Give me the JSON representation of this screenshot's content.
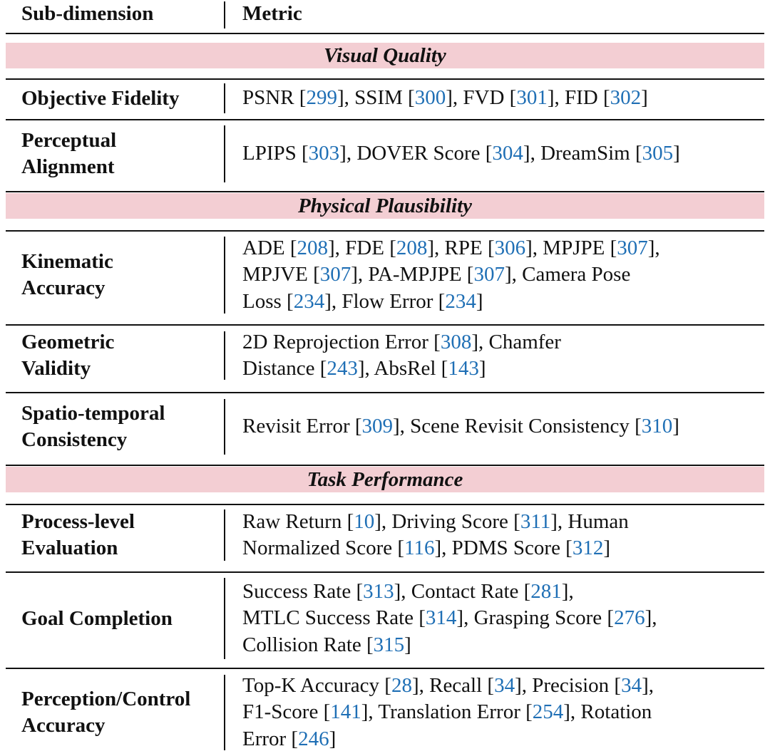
{
  "header": {
    "col1": "Sub-dimension",
    "col2": "Metric"
  },
  "sections": [
    {
      "title": "Visual Quality",
      "rows": [
        {
          "sub": [
            "Objective Fidelity"
          ],
          "lines": [
            [
              [
                "PSNR [",
                ""
              ],
              [
                "299",
                "r"
              ],
              [
                "], SSIM [",
                ""
              ],
              [
                "300",
                "r"
              ],
              [
                "], FVD [",
                ""
              ],
              [
                "301",
                "r"
              ],
              [
                "], FID [",
                ""
              ],
              [
                "302",
                "r"
              ],
              [
                "]",
                ""
              ]
            ]
          ]
        },
        {
          "sub": [
            "Perceptual",
            "Alignment"
          ],
          "lines": [
            [
              [
                "LPIPS [",
                ""
              ],
              [
                "303",
                "r"
              ],
              [
                "], DOVER Score [",
                ""
              ],
              [
                "304",
                "r"
              ],
              [
                "], DreamSim [",
                ""
              ],
              [
                "305",
                "r"
              ],
              [
                "]",
                ""
              ]
            ]
          ]
        }
      ]
    },
    {
      "title": "Physical Plausibility",
      "rows": [
        {
          "sub": [
            "Kinematic",
            "Accuracy"
          ],
          "lines": [
            [
              [
                "ADE [",
                ""
              ],
              [
                "208",
                "r"
              ],
              [
                "], FDE [",
                ""
              ],
              [
                "208",
                "r"
              ],
              [
                "], RPE [",
                ""
              ],
              [
                "306",
                "r"
              ],
              [
                "], MPJPE [",
                ""
              ],
              [
                "307",
                "r"
              ],
              [
                "],",
                ""
              ]
            ],
            [
              [
                "MPJVE [",
                ""
              ],
              [
                "307",
                "r"
              ],
              [
                "], PA-MPJPE [",
                ""
              ],
              [
                "307",
                "r"
              ],
              [
                "], Camera Pose",
                ""
              ]
            ],
            [
              [
                "Loss [",
                ""
              ],
              [
                "234",
                "r"
              ],
              [
                "], Flow Error [",
                ""
              ],
              [
                "234",
                "r"
              ],
              [
                "]",
                ""
              ]
            ]
          ]
        },
        {
          "sub": [
            "Geometric",
            "Validity"
          ],
          "lines": [
            [
              [
                "2D Reprojection Error [",
                ""
              ],
              [
                "308",
                "r"
              ],
              [
                "], Chamfer",
                ""
              ]
            ],
            [
              [
                "Distance [",
                ""
              ],
              [
                "243",
                "r"
              ],
              [
                "], AbsRel [",
                ""
              ],
              [
                "143",
                "r"
              ],
              [
                "]",
                ""
              ]
            ]
          ]
        },
        {
          "sub": [
            "Spatio-temporal",
            "Consistency"
          ],
          "lines": [
            [
              [
                "Revisit Error [",
                ""
              ],
              [
                "309",
                "r"
              ],
              [
                "], Scene Revisit Consistency [",
                ""
              ],
              [
                "310",
                "r"
              ],
              [
                "]",
                ""
              ]
            ]
          ]
        }
      ]
    },
    {
      "title": "Task Performance",
      "rows": [
        {
          "sub": [
            "Process-level",
            "Evaluation"
          ],
          "lines": [
            [
              [
                "Raw Return [",
                ""
              ],
              [
                "10",
                "r"
              ],
              [
                "], Driving Score [",
                ""
              ],
              [
                "311",
                "r"
              ],
              [
                "], Human",
                ""
              ]
            ],
            [
              [
                "Normalized Score [",
                ""
              ],
              [
                "116",
                "r"
              ],
              [
                "], PDMS Score [",
                ""
              ],
              [
                "312",
                "r"
              ],
              [
                "]",
                ""
              ]
            ]
          ]
        },
        {
          "sub": [
            "Goal Completion"
          ],
          "lines": [
            [
              [
                "Success Rate [",
                ""
              ],
              [
                "313",
                "r"
              ],
              [
                "], Contact Rate [",
                ""
              ],
              [
                "281",
                "r"
              ],
              [
                "],",
                ""
              ]
            ],
            [
              [
                "MTLC Success Rate [",
                ""
              ],
              [
                "314",
                "r"
              ],
              [
                "], Grasping Score [",
                ""
              ],
              [
                "276",
                "r"
              ],
              [
                "],",
                ""
              ]
            ],
            [
              [
                "Collision Rate [",
                ""
              ],
              [
                "315",
                "r"
              ],
              [
                "]",
                ""
              ]
            ]
          ]
        },
        {
          "sub": [
            "Perception/Control",
            "Accuracy"
          ],
          "lines": [
            [
              [
                "Top-K Accuracy [",
                ""
              ],
              [
                "28",
                "r"
              ],
              [
                "], Recall [",
                ""
              ],
              [
                "34",
                "r"
              ],
              [
                "], Precision [",
                ""
              ],
              [
                "34",
                "r"
              ],
              [
                "],",
                ""
              ]
            ],
            [
              [
                "F1-Score [",
                ""
              ],
              [
                "141",
                "r"
              ],
              [
                "], Translation Error [",
                ""
              ],
              [
                "254",
                "r"
              ],
              [
                "], Rotation",
                ""
              ]
            ],
            [
              [
                "Error [",
                ""
              ],
              [
                "246",
                "r"
              ],
              [
                "]",
                ""
              ]
            ]
          ]
        }
      ]
    }
  ]
}
